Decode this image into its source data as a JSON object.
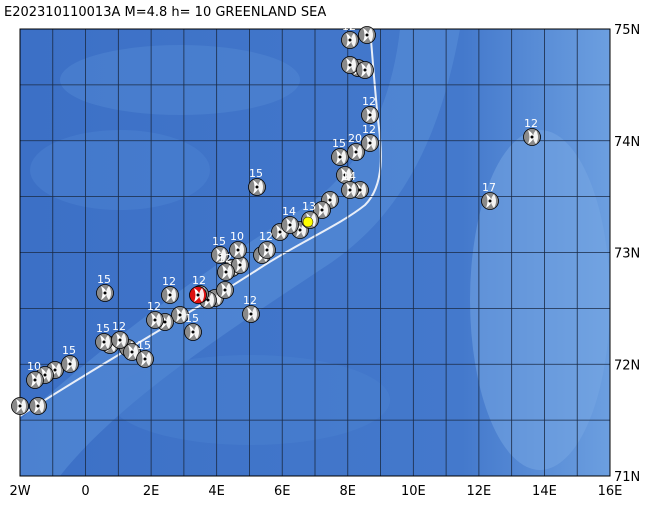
{
  "title": "E202310110013A M=4.8 h= 10 GREENLAND SEA",
  "lon_labels": [
    "2W",
    "0",
    "2E",
    "4E",
    "6E",
    "8E",
    "10E",
    "12E",
    "14E",
    "16E"
  ],
  "lat_labels": [
    "75N",
    "74N",
    "73N",
    "72N",
    "71N"
  ],
  "event_labels": [
    "12",
    "13",
    "12",
    "12",
    "17",
    "15",
    "15",
    "20",
    "12",
    "14",
    "13",
    "14",
    "12",
    "10",
    "15",
    "12",
    "12",
    "12",
    "12",
    "15",
    "12",
    "15",
    "15",
    "12",
    "15",
    "15",
    "10",
    "1"
  ]
}
